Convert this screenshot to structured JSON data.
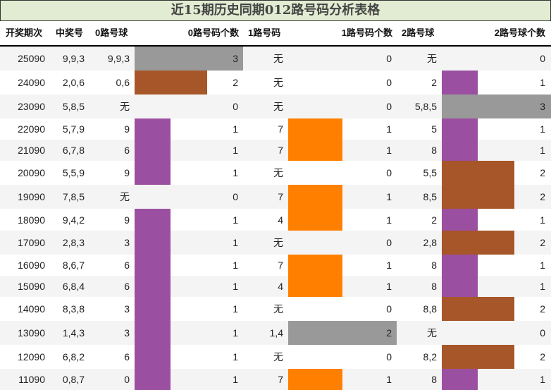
{
  "title": "近15期历史同期012路号码分析表格",
  "headers": {
    "period": "开奖期次",
    "winning": "中奖号",
    "r0_balls": "0路号球",
    "r0_count": "0路号码个数",
    "r1_balls": "1路号码",
    "r1_count": "1路号码个数",
    "r2_balls": "2路号球",
    "r2_count": "2路号球个数"
  },
  "colors": {
    "count_0": "none",
    "count_1": "#9b4fa0",
    "count_1_r1": "#ff8000",
    "count_2": "#a65628",
    "count_2_r1": "#999999",
    "count_3": "#999999",
    "title_bg": "#e2ecd2",
    "row_alt": "#f4f4f4"
  },
  "rows": [
    {
      "period": "25090",
      "winning": "9,9,3",
      "r0": "9,9,3",
      "r0c": "3",
      "r1": "无",
      "r1c": "0",
      "r2": "无",
      "r2c": "0"
    },
    {
      "period": "24090",
      "winning": "2,0,6",
      "r0": "0,6",
      "r0c": "2",
      "r1": "无",
      "r1c": "0",
      "r2": "2",
      "r2c": "1"
    },
    {
      "period": "23090",
      "winning": "5,8,5",
      "r0": "无",
      "r0c": "0",
      "r1": "无",
      "r1c": "0",
      "r2": "5,8,5",
      "r2c": "3"
    },
    {
      "period": "22090",
      "winning": "5,7,9",
      "r0": "9",
      "r0c": "1",
      "r1": "7",
      "r1c": "1",
      "r2": "5",
      "r2c": "1"
    },
    {
      "period": "21090",
      "winning": "6,7,8",
      "r0": "6",
      "r0c": "1",
      "r1": "7",
      "r1c": "1",
      "r2": "8",
      "r2c": "1"
    },
    {
      "period": "20090",
      "winning": "5,5,9",
      "r0": "9",
      "r0c": "1",
      "r1": "无",
      "r1c": "0",
      "r2": "5,5",
      "r2c": "2"
    },
    {
      "period": "19090",
      "winning": "7,8,5",
      "r0": "无",
      "r0c": "0",
      "r1": "7",
      "r1c": "1",
      "r2": "8,5",
      "r2c": "2"
    },
    {
      "period": "18090",
      "winning": "9,4,2",
      "r0": "9",
      "r0c": "1",
      "r1": "4",
      "r1c": "1",
      "r2": "2",
      "r2c": "1"
    },
    {
      "period": "17090",
      "winning": "2,8,3",
      "r0": "3",
      "r0c": "1",
      "r1": "无",
      "r1c": "0",
      "r2": "2,8",
      "r2c": "2"
    },
    {
      "period": "16090",
      "winning": "8,6,7",
      "r0": "6",
      "r0c": "1",
      "r1": "7",
      "r1c": "1",
      "r2": "8",
      "r2c": "1"
    },
    {
      "period": "15090",
      "winning": "6,8,4",
      "r0": "6",
      "r0c": "1",
      "r1": "4",
      "r1c": "1",
      "r2": "8",
      "r2c": "1"
    },
    {
      "period": "14090",
      "winning": "8,3,8",
      "r0": "3",
      "r0c": "1",
      "r1": "无",
      "r1c": "0",
      "r2": "8,8",
      "r2c": "2"
    },
    {
      "period": "13090",
      "winning": "1,4,3",
      "r0": "3",
      "r0c": "1",
      "r1": "1,4",
      "r1c": "2",
      "r2": "无",
      "r2c": "0"
    },
    {
      "period": "12090",
      "winning": "6,8,2",
      "r0": "6",
      "r0c": "1",
      "r1": "无",
      "r1c": "0",
      "r2": "8,2",
      "r2c": "2"
    },
    {
      "period": "11090",
      "winning": "0,8,7",
      "r0": "0",
      "r0c": "1",
      "r1": "7",
      "r1c": "1",
      "r2": "8",
      "r2c": "1"
    }
  ],
  "chart_data": {
    "type": "table",
    "title": "近15期历史同期012路号码分析表格",
    "columns": [
      "开奖期次",
      "中奖号",
      "0路号球",
      "0路号码个数",
      "1路号码",
      "1路号码个数",
      "2路号球",
      "2路号球个数"
    ],
    "categories": [
      "25090",
      "24090",
      "23090",
      "22090",
      "21090",
      "20090",
      "19090",
      "18090",
      "17090",
      "16090",
      "15090",
      "14090",
      "13090",
      "12090",
      "11090"
    ],
    "series": [
      {
        "name": "0路号码个数",
        "values": [
          3,
          2,
          0,
          1,
          1,
          1,
          0,
          1,
          1,
          1,
          1,
          1,
          1,
          1,
          1
        ]
      },
      {
        "name": "1路号码个数",
        "values": [
          0,
          0,
          0,
          1,
          1,
          0,
          1,
          1,
          0,
          1,
          1,
          0,
          2,
          0,
          1
        ]
      },
      {
        "name": "2路号球个数",
        "values": [
          0,
          1,
          3,
          1,
          1,
          2,
          2,
          1,
          2,
          1,
          1,
          2,
          0,
          2,
          1
        ]
      }
    ]
  }
}
